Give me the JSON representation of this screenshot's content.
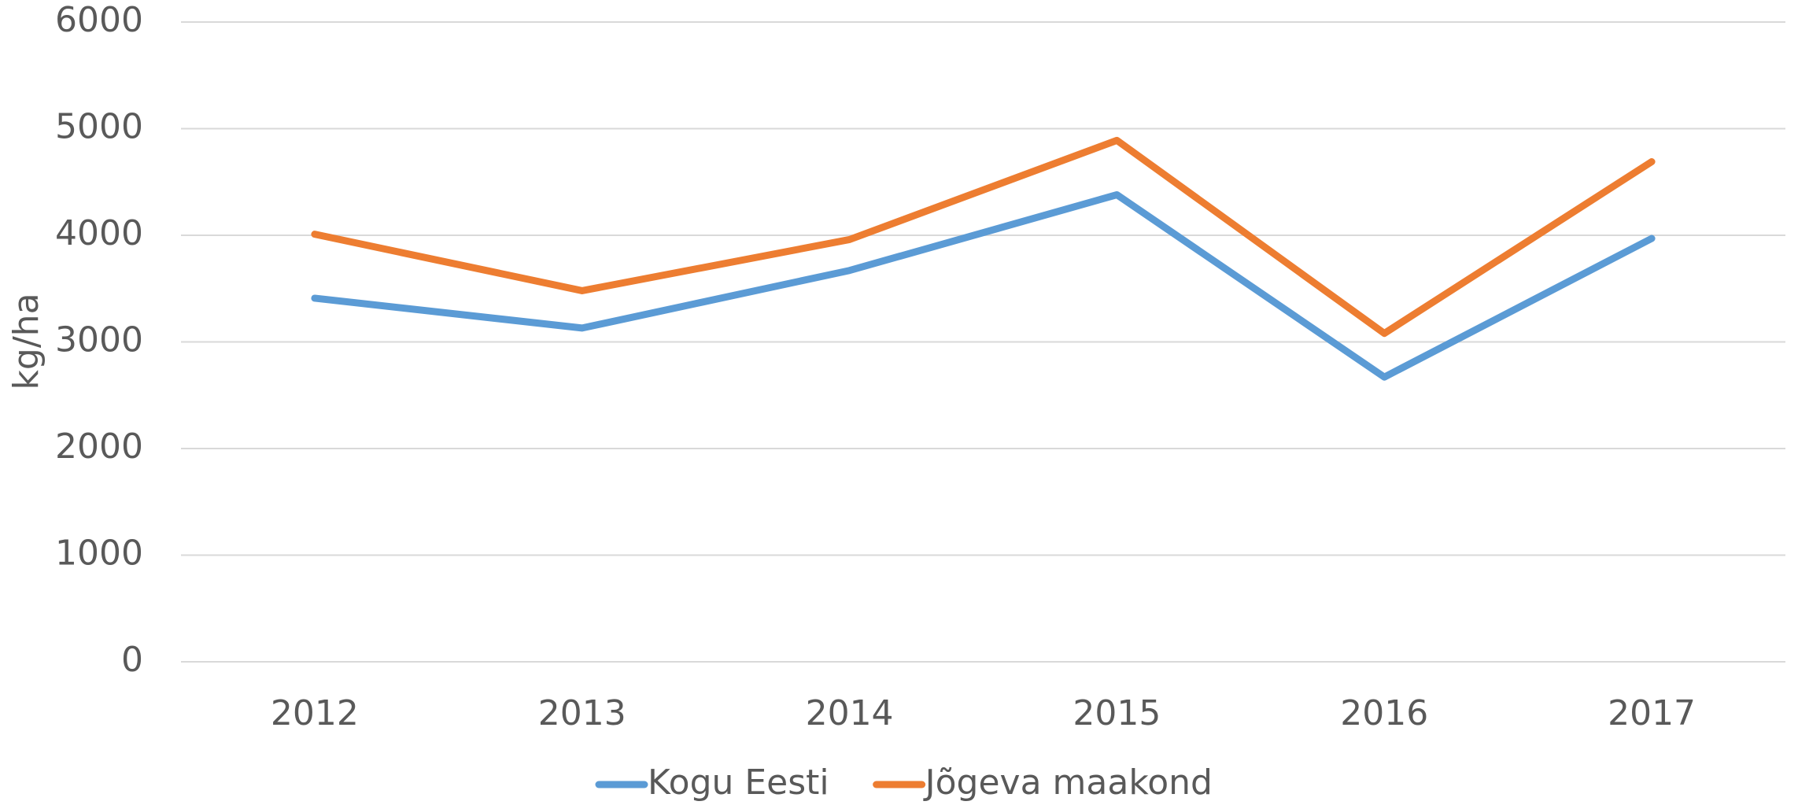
{
  "chart_data": {
    "type": "line",
    "ylabel": "kg/ha",
    "categories": [
      "2012",
      "2013",
      "2014",
      "2015",
      "2016",
      "2017"
    ],
    "series": [
      {
        "name": "Kogu Eesti",
        "color": "#5b9bd5",
        "values": [
          3410,
          3130,
          3670,
          4380,
          2670,
          3970
        ]
      },
      {
        "name": "Jõgeva maakond",
        "color": "#ed7d31",
        "values": [
          4010,
          3480,
          3960,
          4890,
          3080,
          4690
        ]
      }
    ],
    "ylim": [
      0,
      6000
    ],
    "yticks": [
      0,
      1000,
      2000,
      3000,
      4000,
      5000,
      6000
    ],
    "grid": true,
    "legend": "bottom"
  }
}
